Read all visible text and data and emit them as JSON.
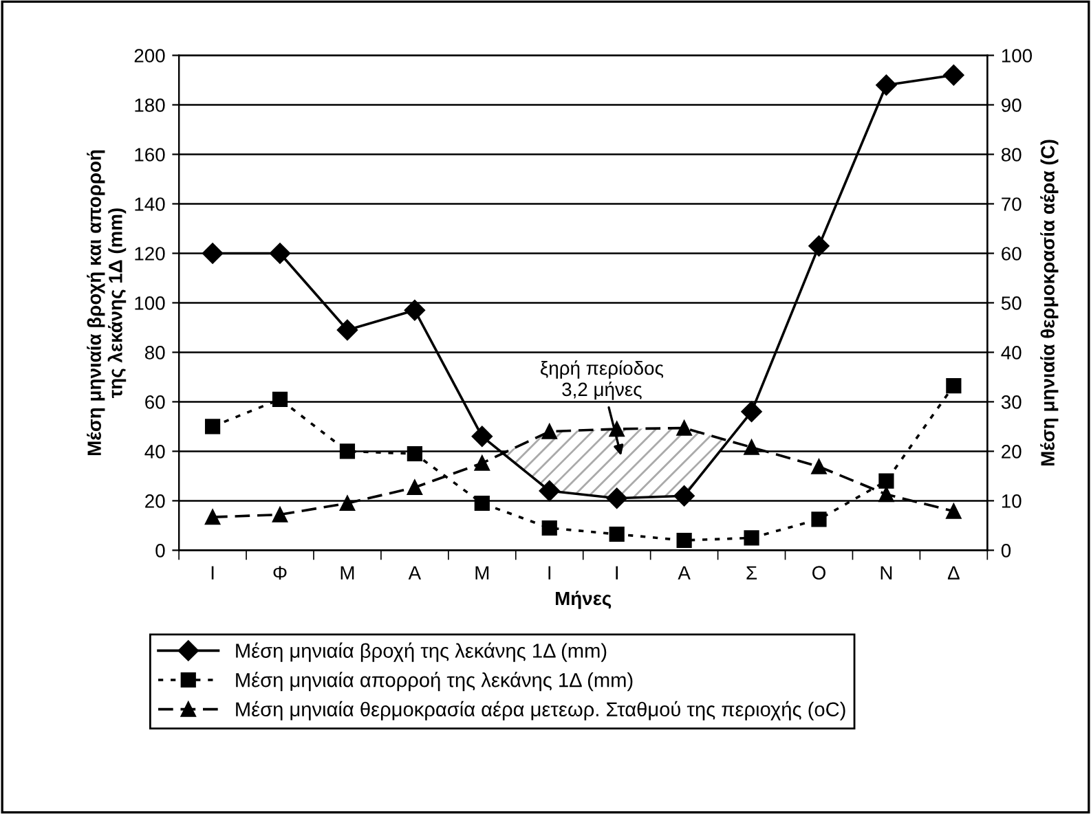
{
  "chart_data": {
    "type": "line",
    "categories": [
      "Ι",
      "Φ",
      "Μ",
      "Α",
      "Μ",
      "Ι",
      "Ι",
      "Α",
      "Σ",
      "Ο",
      "Ν",
      "Δ"
    ],
    "xlabel": "Μήνες",
    "ylabel": "Μέση μηνιαία βροχή και απορροή\nτης λεκάνης 1Δ (mm)",
    "y2label": "Μέση μηνιαία θερμοκρασία αέρα (C)",
    "ylim": [
      0,
      200
    ],
    "yticks": [
      0,
      20,
      40,
      60,
      80,
      100,
      120,
      140,
      160,
      180,
      200
    ],
    "y2lim": [
      0,
      100
    ],
    "y2ticks": [
      0,
      10,
      20,
      30,
      40,
      50,
      60,
      70,
      80,
      90,
      100
    ],
    "grid": "y",
    "legend": "bottom",
    "series": [
      {
        "name": "Μέση μηνιαία βροχή της λεκάνης 1Δ (mm)",
        "color": "#000000",
        "marker": "diamond",
        "line_style": "solid",
        "values": [
          120,
          120,
          89,
          97,
          46,
          24,
          21,
          22,
          56,
          123,
          188,
          192
        ]
      },
      {
        "name": "Μέση μηνιαία απορροή της λεκάνης 1Δ (mm)",
        "color": "#000000",
        "marker": "square",
        "line_style": "dotted",
        "values": [
          50,
          61,
          40,
          39,
          19,
          9,
          6.5,
          4,
          5,
          12.5,
          28,
          66.5
        ]
      },
      {
        "name": "Μέση μηνιαία θερμοκρασία αέρα μετεωρ. Σταθμού της περιοχής (oC)",
        "color": "#000000",
        "marker": "triangle",
        "line_style": "dashed",
        "axis": "y2",
        "values": [
          6.7,
          7.2,
          9.5,
          12.7,
          17.6,
          24,
          24.5,
          24.7,
          20.8,
          16.9,
          11.3,
          7.9
        ]
      }
    ],
    "annotations": [
      "ξηρή περίοδος\n3,2 μήνες"
    ]
  }
}
